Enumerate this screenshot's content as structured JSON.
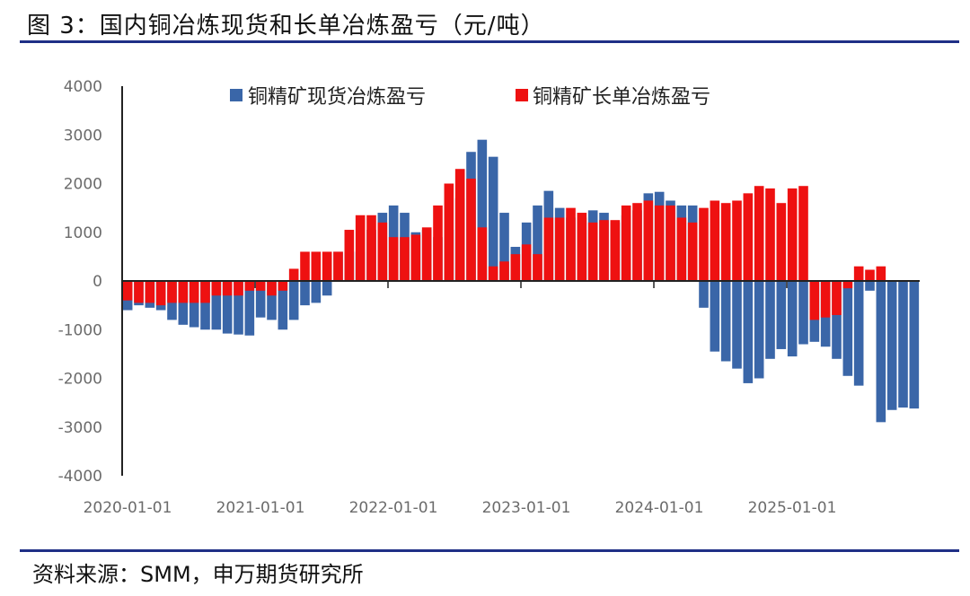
{
  "header": {
    "title": "图 3：国内铜冶炼现货和长单冶炼盈亏（元/吨）"
  },
  "footer": {
    "source": "资料来源：SMM，申万期货研究所"
  },
  "colors": {
    "spot": "#3a66a8",
    "long": "#ee1111",
    "rule": "#1f2f86",
    "axis": "#222222"
  },
  "chart_data": {
    "type": "bar",
    "title": "国内铜冶炼现货和长单冶炼盈亏（元/吨）",
    "xlabel": "",
    "ylabel": "",
    "ylim": [
      -4000,
      4000
    ],
    "yticks": [
      4000,
      3000,
      2000,
      1000,
      0,
      -1000,
      -2000,
      -3000,
      -4000
    ],
    "xtick_labels": [
      "2020-01-01",
      "2021-01-01",
      "2022-01-01",
      "2023-01-01",
      "2024-01-01",
      "2025-01-01"
    ],
    "x_start": "2020-01",
    "x_step": "monthly",
    "series": [
      {
        "name": "铜精矿现货冶炼盈亏",
        "color": "#3a66a8",
        "values": [
          -600,
          -500,
          -550,
          -600,
          -800,
          -900,
          -950,
          -1000,
          -1000,
          -1080,
          -1100,
          -1120,
          -750,
          -800,
          -1000,
          -800,
          -500,
          -450,
          -300,
          600,
          600,
          600,
          1050,
          1400,
          1550,
          1400,
          1000,
          1050,
          900,
          1050,
          1700,
          2650,
          2900,
          2550,
          1400,
          700,
          1200,
          1550,
          1850,
          1500,
          1300,
          1300,
          1450,
          1400,
          1200,
          1350,
          1450,
          1800,
          1830,
          1650,
          1550,
          1550,
          -550,
          -1450,
          -1650,
          -1800,
          -2100,
          -2000,
          -1600,
          -1400,
          -1550,
          -1300,
          -1250,
          -1350,
          -1600,
          -1950,
          -2150,
          -200,
          -2900,
          -2650,
          -2600,
          -2620
        ]
      },
      {
        "name": "铜精矿长单冶炼盈亏",
        "color": "#ee1111",
        "values": [
          -400,
          -450,
          -450,
          -500,
          -450,
          -450,
          -450,
          -450,
          -300,
          -300,
          -300,
          -200,
          -200,
          -300,
          -200,
          250,
          600,
          600,
          600,
          600,
          1050,
          1350,
          1350,
          1200,
          900,
          900,
          950,
          1100,
          1550,
          2000,
          2300,
          2100,
          1100,
          300,
          400,
          550,
          750,
          550,
          1300,
          1300,
          1500,
          1400,
          1200,
          1250,
          1250,
          1550,
          1600,
          1650,
          1550,
          1550,
          1300,
          1200,
          1500,
          1650,
          1600,
          1650,
          1800,
          1950,
          1900,
          1600,
          1900,
          1950,
          -800,
          -750,
          -700,
          -150,
          300,
          230,
          300
        ]
      }
    ],
    "legend": [
      "铜精矿现货冶炼盈亏",
      "铜精矿长单冶炼盈亏"
    ],
    "legend_position": "top"
  }
}
